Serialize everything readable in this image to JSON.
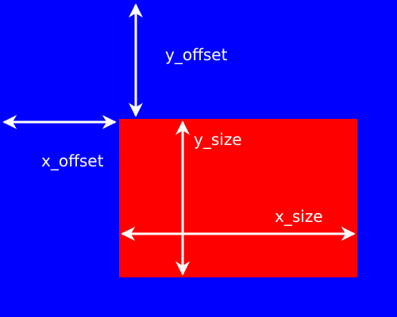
{
  "colors": {
    "background": "#0000ff",
    "region": "#ff0000",
    "foreground": "#ffffff"
  },
  "labels": {
    "y_offset": "y_offset",
    "x_offset": "x_offset",
    "y_size": "y_size",
    "x_size": "x_size"
  }
}
